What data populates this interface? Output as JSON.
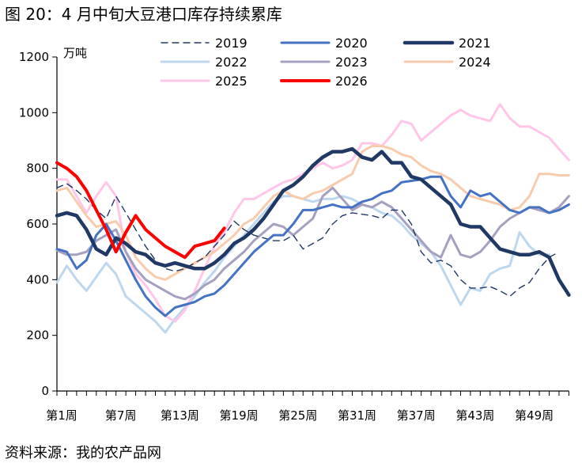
{
  "title": "图 20：4 月中旬大豆港口库存持续累库",
  "source": "资料来源：我的农产品网",
  "chart_data": {
    "type": "line",
    "ylabel": "万吨",
    "xlabel": "",
    "ylim": [
      0,
      1200
    ],
    "yticks": [
      0,
      200,
      400,
      600,
      800,
      1000,
      1200
    ],
    "xlim": [
      1,
      53
    ],
    "xticks": [
      {
        "week": 1,
        "label": "第1周"
      },
      {
        "week": 7,
        "label": "第7周"
      },
      {
        "week": 13,
        "label": "第13周"
      },
      {
        "week": 19,
        "label": "第19周"
      },
      {
        "week": 25,
        "label": "第25周"
      },
      {
        "week": 31,
        "label": "第31周"
      },
      {
        "week": 37,
        "label": "第37周"
      },
      {
        "week": 43,
        "label": "第43周"
      },
      {
        "week": 49,
        "label": "第49周"
      }
    ],
    "grid": false,
    "legend_position": "top",
    "series": [
      {
        "name": "2019",
        "color": "#1f3864",
        "style": "dashed",
        "values": [
          730,
          745,
          720,
          690,
          650,
          620,
          700,
          640,
          580,
          520,
          470,
          440,
          430,
          440,
          460,
          480,
          520,
          560,
          610,
          580,
          560,
          550,
          540,
          540,
          560,
          510,
          530,
          550,
          600,
          630,
          640,
          635,
          630,
          620,
          650,
          650,
          600,
          500,
          460,
          470,
          450,
          400,
          370,
          370,
          375,
          360,
          340,
          370,
          390,
          440,
          480,
          500,
          null
        ]
      },
      {
        "name": "2020",
        "color": "#4472c4",
        "style": "solid",
        "values": [
          510,
          500,
          440,
          470,
          560,
          600,
          540,
          470,
          400,
          340,
          300,
          270,
          300,
          310,
          320,
          340,
          350,
          380,
          420,
          460,
          500,
          530,
          560,
          560,
          600,
          650,
          650,
          660,
          670,
          660,
          660,
          680,
          690,
          710,
          720,
          750,
          755,
          760,
          770,
          770,
          700,
          660,
          720,
          700,
          710,
          680,
          650,
          640,
          660,
          660,
          640,
          650,
          670
        ]
      },
      {
        "name": "2021",
        "color": "#1f3864",
        "style": "solid",
        "values": [
          630,
          640,
          630,
          580,
          510,
          490,
          550,
          530,
          500,
          490,
          460,
          450,
          460,
          450,
          440,
          440,
          460,
          490,
          530,
          550,
          580,
          620,
          670,
          720,
          740,
          770,
          810,
          840,
          860,
          860,
          870,
          840,
          830,
          860,
          820,
          820,
          770,
          760,
          730,
          700,
          670,
          600,
          590,
          590,
          550,
          510,
          500,
          490,
          490,
          500,
          480,
          400,
          345
        ]
      },
      {
        "name": "2022",
        "color": "#bdd7ee",
        "style": "solid",
        "values": [
          390,
          450,
          400,
          360,
          410,
          460,
          420,
          340,
          310,
          280,
          250,
          210,
          260,
          300,
          340,
          390,
          430,
          480,
          520,
          560,
          600,
          640,
          680,
          700,
          700,
          690,
          680,
          690,
          690,
          700,
          690,
          670,
          660,
          640,
          630,
          600,
          560,
          530,
          500,
          450,
          380,
          310,
          370,
          360,
          420,
          440,
          450,
          570,
          520,
          490,
          490,
          null,
          null
        ]
      },
      {
        "name": "2023",
        "color": "#a6a0c0",
        "style": "solid",
        "values": [
          505,
          490,
          490,
          500,
          540,
          560,
          580,
          500,
          440,
          400,
          380,
          360,
          340,
          330,
          350,
          380,
          400,
          440,
          470,
          500,
          540,
          570,
          600,
          590,
          560,
          590,
          620,
          700,
          730,
          690,
          650,
          670,
          660,
          680,
          660,
          620,
          580,
          540,
          500,
          480,
          560,
          490,
          480,
          500,
          540,
          590,
          620,
          640,
          660,
          650,
          640,
          660,
          700
        ]
      },
      {
        "name": "2024",
        "color": "#f8cbad",
        "style": "solid",
        "values": [
          720,
          730,
          680,
          630,
          590,
          600,
          610,
          560,
          480,
          440,
          410,
          400,
          420,
          440,
          460,
          480,
          500,
          530,
          560,
          600,
          620,
          660,
          700,
          720,
          700,
          690,
          710,
          720,
          740,
          760,
          780,
          860,
          880,
          880,
          870,
          850,
          840,
          810,
          790,
          780,
          760,
          730,
          700,
          690,
          680,
          670,
          650,
          660,
          700,
          780,
          780,
          775,
          775
        ]
      },
      {
        "name": "2025",
        "color": "#ffc6e9",
        "style": "solid",
        "values": [
          760,
          760,
          700,
          640,
          700,
          750,
          700,
          500,
          420,
          380,
          330,
          270,
          250,
          290,
          360,
          440,
          520,
          570,
          640,
          690,
          690,
          710,
          730,
          750,
          760,
          780,
          800,
          820,
          800,
          810,
          830,
          890,
          890,
          880,
          920,
          970,
          960,
          900,
          930,
          960,
          990,
          1010,
          990,
          980,
          970,
          1030,
          980,
          950,
          950,
          930,
          910,
          870,
          830
        ]
      },
      {
        "name": "2026",
        "color": "#ff0000",
        "style": "solid",
        "values": [
          820,
          800,
          770,
          720,
          650,
          580,
          500,
          570,
          630,
          580,
          550,
          520,
          500,
          480,
          520,
          530,
          540,
          585,
          null,
          null,
          null,
          null,
          null,
          null,
          null,
          null,
          null,
          null,
          null,
          null,
          null,
          null,
          null,
          null,
          null,
          null,
          null,
          null,
          null,
          null,
          null,
          null,
          null,
          null,
          null,
          null,
          null,
          null,
          null,
          null,
          null,
          null,
          null
        ]
      }
    ]
  }
}
